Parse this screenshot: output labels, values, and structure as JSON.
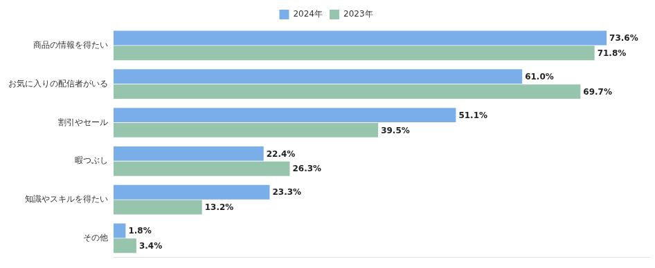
{
  "chart_data": {
    "type": "bar",
    "orientation": "horizontal",
    "categories": [
      "商品の情報を得たい",
      "お気に入りの配信者がいる",
      "割引やセール",
      "暇つぶし",
      "知識やスキルを得たい",
      "その他"
    ],
    "series": [
      {
        "name": "2024年",
        "color": "#7aaee8",
        "values": [
          73.6,
          61.0,
          51.1,
          22.4,
          23.3,
          1.8
        ],
        "value_labels": [
          "73.6%",
          "61.0%",
          "51.1%",
          "22.4%",
          "23.3%",
          "1.8%"
        ]
      },
      {
        "name": "2023年",
        "color": "#97c4ad",
        "values": [
          71.8,
          69.7,
          39.5,
          26.3,
          13.2,
          3.4
        ],
        "value_labels": [
          "71.8%",
          "69.7%",
          "39.5%",
          "26.3%",
          "13.2%",
          "3.4%"
        ]
      }
    ],
    "xlim": [
      0,
      80
    ],
    "grid": false,
    "legend": "top",
    "data_labels": true,
    "tick_labels": "y"
  }
}
